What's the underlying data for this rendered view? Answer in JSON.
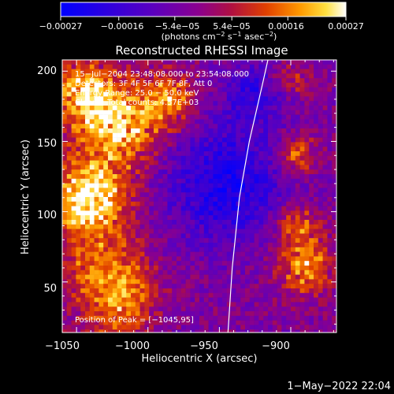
{
  "chart_data": {
    "type": "heatmap",
    "title": "Reconstructed RHESSI Image",
    "xlabel": "Heliocentric X (arcsec)",
    "ylabel": "Heliocentric Y (arcsec)",
    "xlim": [
      -1060,
      -868
    ],
    "ylim": [
      14,
      208
    ],
    "x_ticks": [
      -1050,
      -1000,
      -950,
      -900
    ],
    "x_tick_labels": [
      "−1050",
      "−1000",
      "−950",
      "−900"
    ],
    "y_ticks": [
      50,
      100,
      150,
      200
    ],
    "y_tick_labels": [
      "50",
      "100",
      "150",
      "200"
    ],
    "colorbar": {
      "range": [
        -0.00027,
        0.00027
      ],
      "tick_values": [
        -0.00027,
        -0.00016,
        -5.4e-05,
        5.4e-05,
        0.00016,
        0.00027
      ],
      "tick_labels": [
        "−0.00027",
        "−0.00016",
        "−5.4e−05",
        "5.4e−05",
        "0.00016",
        "0.00027"
      ],
      "colors": [
        "#0000ff",
        "#3a00c8",
        "#7a00a0",
        "#a01060",
        "#d03010",
        "#ff7a00",
        "#ffd000",
        "#ffffff"
      ]
    },
    "units_label": {
      "open": "(photons cm",
      "exp1": "−2",
      "mid": " s",
      "exp2": "−1",
      "mid2": " asec",
      "exp3": "−2",
      "close": ")"
    },
    "annotations": [
      "15−Jul−2004 23:48:08.000 to 23:54:08.000",
      "Detectors: 3F 4F 5F 6F 7F 8F, Att 0",
      "Energy Range: 25.0 − 50.0 keV",
      "Clean    Total counts: 4.57E+03"
    ],
    "peak_label": "Position of Peak = [−1045,95]",
    "limb_curve": [
      [
        -944,
        14
      ],
      [
        -941,
        60
      ],
      [
        -936,
        110
      ],
      [
        -929,
        150
      ],
      [
        -920,
        190
      ],
      [
        -916,
        208
      ]
    ],
    "map_region_values": {
      "left_bright_blob_center": [
        -1040,
        110
      ],
      "upper_left_bright_center": [
        -1020,
        160
      ],
      "central_dim_center": [
        -940,
        120
      ]
    }
  },
  "footer": {
    "date": "1−May−2022 22:04"
  }
}
